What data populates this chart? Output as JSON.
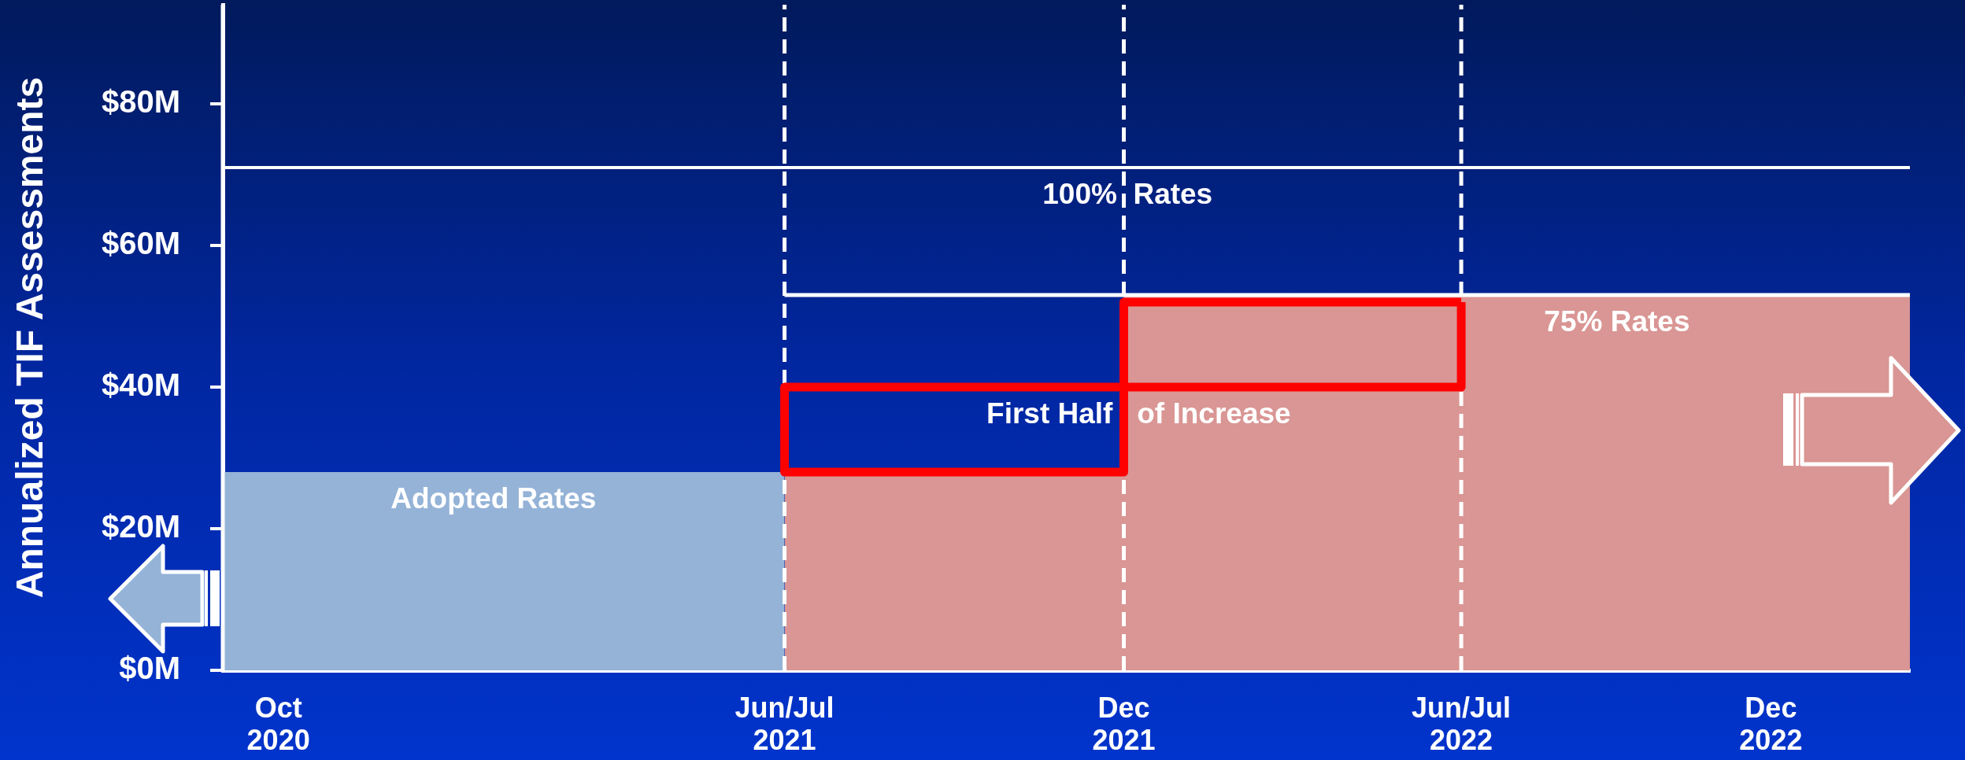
{
  "chart_data": {
    "type": "area",
    "ylabel": "Annualized TIF Assessments",
    "xlim": [
      "2020-09-01",
      "2023-02-28"
    ],
    "xticks": [
      {
        "value": "2020-10-01",
        "label": "Oct 2020"
      },
      {
        "value": "2021-07-01",
        "label": "Jun/Jul 2021"
      },
      {
        "value": "2021-12-31",
        "label": "Dec 2021"
      },
      {
        "value": "2022-07-01",
        "label": "Jun/Jul 2022"
      },
      {
        "value": "2022-12-15",
        "label": "Dec 2022"
      }
    ],
    "ylim": [
      0,
      94
    ],
    "yticks": [
      {
        "value": 0,
        "label": "$0M"
      },
      {
        "value": 20,
        "label": "$20M"
      },
      {
        "value": 40,
        "label": "$40M"
      },
      {
        "value": 60,
        "label": "$60M"
      },
      {
        "value": 80,
        "label": "$80M"
      }
    ],
    "series": [
      {
        "color": "#95b3d7",
        "x": [
          "2020-09-01",
          "2021-07-01"
        ],
        "values": [
          28,
          28
        ]
      },
      {
        "color": "#d99694",
        "x": [
          "2021-07-01",
          "2021-12-31",
          "2021-12-31",
          "2023-02-28"
        ],
        "values": [
          28,
          28,
          53,
          53
        ]
      },
      {
        "type": "line",
        "color": "#ff0000",
        "x": [
          "2021-07-01",
          "2021-07-01",
          "2021-12-31",
          "2021-12-31",
          "2022-07-01",
          "2022-07-01"
        ],
        "values": [
          40,
          28,
          28,
          40,
          40,
          52
        ]
      },
      {
        "type": "line",
        "color": "#ff0000",
        "x": [
          "2021-07-01",
          "2021-12-31",
          "2021-12-31",
          "2022-07-01"
        ],
        "values": [
          40,
          40,
          52,
          52
        ]
      },
      {
        "type": "line",
        "color": "#ffffff",
        "x": [
          "2021-07-01",
          "2023-02-28"
        ],
        "values": [
          53,
          53
        ]
      }
    ],
    "ref_lines": [
      {
        "axis": "x",
        "value": "2020-09-01",
        "color": "#ffffff"
      },
      {
        "axis": "x",
        "value": "2021-07-01",
        "color": "#ffffff",
        "line_style": "dashed"
      },
      {
        "axis": "x",
        "value": "2021-12-31",
        "color": "#ffffff",
        "line_style": "dashed"
      },
      {
        "axis": "x",
        "value": "2022-07-01",
        "color": "#ffffff",
        "line_style": "dashed"
      },
      {
        "axis": "y",
        "value": 71,
        "color": "#ffffff"
      }
    ],
    "annotations": [
      {
        "text": "Adopted Rates",
        "x": "2021-01-25",
        "y": 28
      },
      {
        "text": "100%  Rates",
        "x": "2022-01-02",
        "y": 71
      },
      {
        "text": "75% Rates",
        "x": "2022-09-23",
        "y": 53
      },
      {
        "text": "First Half   of Increase",
        "x": "2022-01-08",
        "y": 40
      }
    ]
  }
}
